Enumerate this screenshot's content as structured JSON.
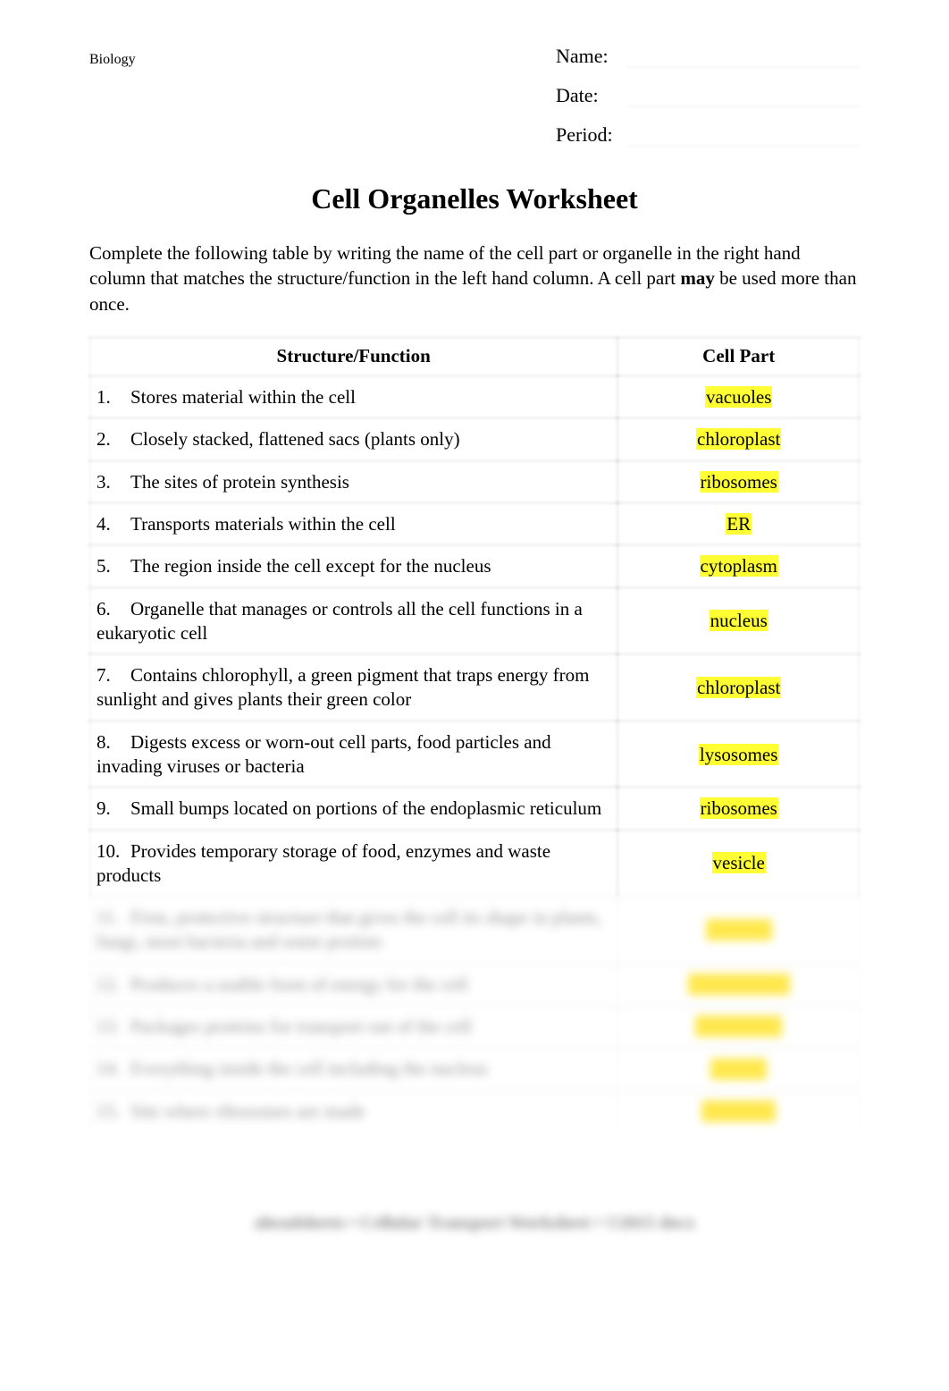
{
  "header": {
    "subject": "Biology",
    "fields": [
      {
        "label": "Name:"
      },
      {
        "label": "Date:"
      },
      {
        "label": "Period:"
      }
    ]
  },
  "title": "Cell Organelles Worksheet",
  "instructions": {
    "pre": "Complete the following table by writing the name of the cell part or organelle in the right hand column that matches the structure/function in the left hand column. A cell part",
    "bold": " may ",
    "post": "be used more than once."
  },
  "table": {
    "columns": [
      "Structure/Function",
      "Cell Part"
    ],
    "rows": [
      {
        "n": "1.",
        "func": "Stores material within the cell",
        "part": "vacuoles",
        "blur": false
      },
      {
        "n": "2.",
        "func": "Closely stacked, flattened sacs (plants only)",
        "part": "chloroplast",
        "blur": false
      },
      {
        "n": "3.",
        "func": "The sites of protein synthesis",
        "part": "ribosomes",
        "blur": false
      },
      {
        "n": "4.",
        "func": "Transports materials within the cell",
        "part": "ER",
        "blur": false
      },
      {
        "n": "5.",
        "func": "The region inside the cell except for the nucleus",
        "part": "cytoplasm",
        "blur": false
      },
      {
        "n": "6.",
        "func": "Organelle that manages or controls all the cell functions in a eukaryotic cell",
        "part": "nucleus",
        "blur": false
      },
      {
        "n": "7.",
        "func": "Contains chlorophyll, a green pigment that traps energy from sunlight and gives plants their green color",
        "part": "chloroplast",
        "blur": false
      },
      {
        "n": "8.",
        "func": "Digests excess or worn-out cell parts, food particles and invading viruses or bacteria",
        "part": "lysosomes",
        "blur": false
      },
      {
        "n": "9.",
        "func": "Small bumps located on portions of the endoplasmic reticulum",
        "part": "ribosomes",
        "blur": false
      },
      {
        "n": "10.",
        "func": "Provides temporary storage of food, enzymes and waste products",
        "part": "vesicle",
        "blur": false
      },
      {
        "n": "11.",
        "func": "Firm, protective structure that gives the cell its shape in plants, fungi, most bacteria and some protists",
        "part": "cell wall",
        "blur": true
      },
      {
        "n": "12.",
        "func": "Produces a usable form of energy for the cell",
        "part": "mitochondria",
        "blur": true
      },
      {
        "n": "13.",
        "func": "Packages proteins for transport out of the cell",
        "part": "Golgi body",
        "blur": true
      },
      {
        "n": "14.",
        "func": "Everything inside the cell including the nucleus",
        "part": "cytosol",
        "blur": true
      },
      {
        "n": "15.",
        "func": "Site where ribosomes are made",
        "part": "nucleolus",
        "blur": true
      }
    ]
  },
  "footer": "aheadsheets • Cellular Transport Worksheet • ©2015 docx",
  "colors": {
    "highlight": "#ffff33",
    "text": "#000000",
    "blur_text": "#888888",
    "background": "#ffffff"
  },
  "typography": {
    "base_family": "Times New Roman",
    "subject_fontsize": 16,
    "meta_label_fontsize": 22,
    "title_fontsize": 32,
    "body_fontsize": 21
  }
}
